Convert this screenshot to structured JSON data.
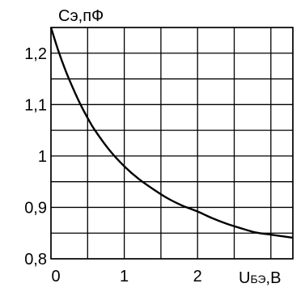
{
  "chart_data": {
    "type": "line",
    "title": "",
    "ylabel": "Cэ,пФ",
    "xlabel_main": "U",
    "xlabel_sub": "БЭ",
    "xlabel_unit": ",В",
    "xlim": [
      0,
      3.3
    ],
    "ylim": [
      0.8,
      1.25
    ],
    "grid": true,
    "x_ticks": [
      {
        "value": 0,
        "label": "0"
      },
      {
        "value": 1,
        "label": "1"
      },
      {
        "value": 2,
        "label": "2"
      }
    ],
    "y_ticks": [
      {
        "value": 0.8,
        "label": "0,8"
      },
      {
        "value": 0.9,
        "label": "0,9"
      },
      {
        "value": 1.0,
        "label": "1"
      },
      {
        "value": 1.1,
        "label": "1,1"
      },
      {
        "value": 1.2,
        "label": "1,2"
      }
    ],
    "x_grid_values": [
      0,
      0.5,
      1,
      1.5,
      2,
      2.5,
      3,
      3.3
    ],
    "y_grid_values": [
      0.8,
      0.85,
      0.9,
      0.95,
      1.0,
      1.05,
      1.1,
      1.15,
      1.2,
      1.25
    ],
    "series": [
      {
        "x": [
          0,
          0.1,
          0.2,
          0.3,
          0.4,
          0.5,
          0.6,
          0.8,
          1.0,
          1.2,
          1.4,
          1.6,
          1.8,
          2.0,
          2.2,
          2.4,
          2.6,
          2.8,
          3.0,
          3.2,
          3.3
        ],
        "y": [
          1.25,
          1.205,
          1.166,
          1.132,
          1.101,
          1.074,
          1.05,
          1.011,
          0.98,
          0.955,
          0.935,
          0.917,
          0.903,
          0.892,
          0.879,
          0.868,
          0.859,
          0.851,
          0.847,
          0.843,
          0.841
        ]
      }
    ]
  }
}
